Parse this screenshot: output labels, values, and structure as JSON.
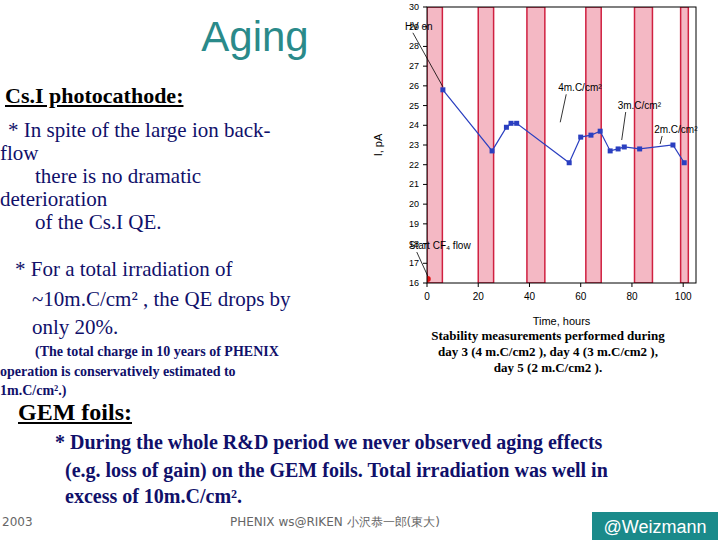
{
  "title": "Aging",
  "csi": {
    "heading": "Cs.I photocathode:",
    "lines": [
      "* In spite of the large ion back-",
      "flow",
      "there is no dramatic",
      "deterioration",
      "of the Cs.I QE.",
      "* For a total irradiation of",
      "~10m.C/cm² , the QE drops by",
      "only 20%."
    ],
    "note": [
      "(The total charge in 10 years of PHENIX",
      "operation is conservatively estimated to",
      "1m.C/cm².)"
    ]
  },
  "caption": [
    "Stability measurements performed during",
    "day 3 (4 m.C/cm2 ), day 4 (3 m.C/cm2 ),",
    "day 5 (2 m.C/cm2 )."
  ],
  "gem": {
    "heading": "GEM foils:",
    "lines": [
      "* During the whole R&D period we never observed aging effects",
      "(e.g. loss of gain) on the GEM foils. Total irradiation was well in",
      "excess of 10m.C/cm²."
    ]
  },
  "footer": {
    "date": "2003",
    "event": "PHENIX ws@RIKEN 小沢恭一郎(東大)",
    "badge": "@Weizmann"
  },
  "chart_data": {
    "type": "line",
    "x_label": "Time, hours",
    "y_label": "I, pA",
    "xlim": [
      0,
      105
    ],
    "xticks": [
      0,
      20,
      40,
      60,
      80,
      100
    ],
    "ylim": [
      16,
      30
    ],
    "yticks": [
      16,
      17,
      18,
      19,
      20,
      21,
      22,
      23,
      24,
      25,
      26,
      27,
      28,
      29,
      30
    ],
    "bands": [
      [
        0,
        6
      ],
      [
        20,
        26
      ],
      [
        39,
        46
      ],
      [
        62,
        68
      ],
      [
        81,
        88
      ],
      [
        99,
        102
      ]
    ],
    "series": [
      {
        "color": "#2a3fc0",
        "marker": "square",
        "line_style": "solid",
        "x": [
          6.2,
          25.4,
          31,
          32.8,
          35,
          55.5,
          60,
          64,
          67.6,
          71.5,
          74.6,
          77,
          83,
          96,
          100.4
        ],
        "values": [
          25.8,
          22.7,
          23.9,
          24.1,
          24.1,
          22.1,
          23.4,
          23.5,
          23.7,
          22.7,
          22.8,
          22.9,
          22.8,
          23.0,
          22.1
        ]
      },
      {
        "color": "#e01010",
        "marker": "circle",
        "line_style": "none",
        "x": [
          0.3
        ],
        "values": [
          16.2
        ]
      }
    ],
    "annotations": [
      {
        "text": "HV on",
        "x": 6.2,
        "y": 25.8
      },
      {
        "text": "4m.C/cm²",
        "x": 52,
        "y": 24.0
      },
      {
        "text": "3m.C/cm²",
        "x": 76,
        "y": 23.1
      },
      {
        "text": "2m.C/cm²",
        "x": 91,
        "y": 22.9
      },
      {
        "text": "Start CF₄ flow",
        "x": 0.3,
        "y": 16.2
      }
    ]
  }
}
